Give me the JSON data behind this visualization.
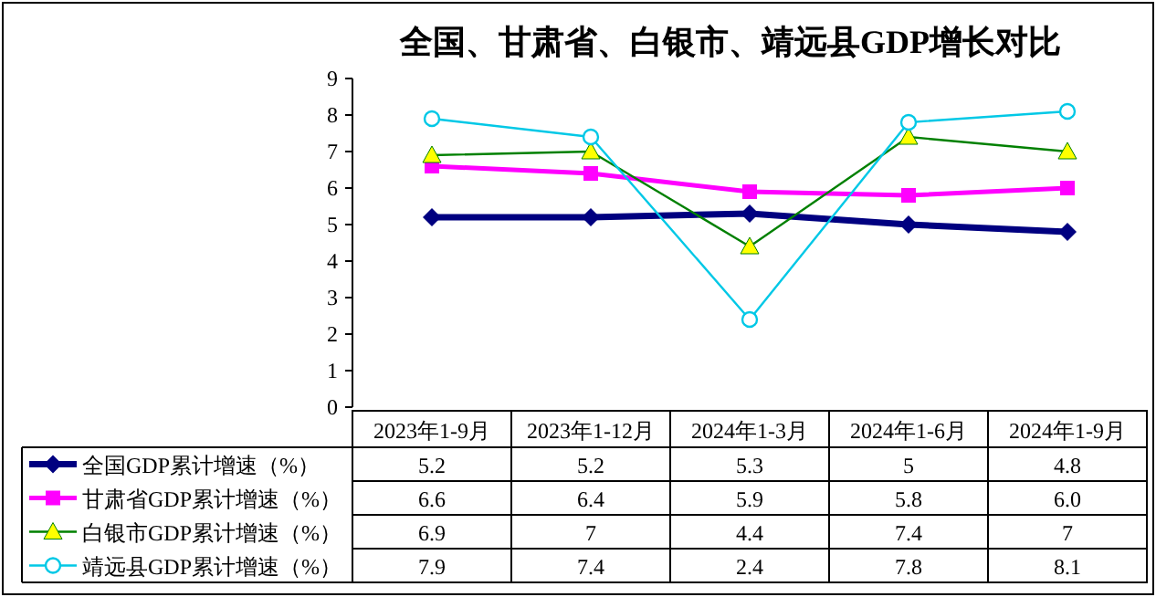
{
  "chart_data": {
    "type": "line",
    "title": "全国、甘肃省、白银市、靖远县GDP增长对比",
    "categories": [
      "2023年1-9月",
      "2023年1-12月",
      "2024年1-3月",
      "2024年1-6月",
      "2024年1-9月"
    ],
    "ylim": [
      0,
      9
    ],
    "yticks": [
      0,
      1,
      2,
      3,
      4,
      5,
      6,
      7,
      8,
      9
    ],
    "grid": false,
    "legend": "bottom",
    "line_style": "solid",
    "series": [
      {
        "name": "全国GDP累计增速（%）",
        "color": "#000080",
        "marker": "diamond",
        "values": [
          5.2,
          5.2,
          5.3,
          5,
          4.8
        ],
        "value_labels": [
          "5.2",
          "5.2",
          "5.3",
          "5",
          "4.8"
        ]
      },
      {
        "name": "甘肃省GDP累计增速（%）",
        "color": "#ff00ff",
        "marker": "square",
        "values": [
          6.6,
          6.4,
          5.9,
          5.8,
          6.0
        ],
        "value_labels": [
          "6.6",
          "6.4",
          "5.9",
          "5.8",
          "6.0"
        ]
      },
      {
        "name": "白银市GDP累计增速（%）",
        "color": "#008000",
        "marker": "triangle",
        "values": [
          6.9,
          7,
          4.4,
          7.4,
          7
        ],
        "value_labels": [
          "6.9",
          "7",
          "4.4",
          "7.4",
          "7"
        ]
      },
      {
        "name": "靖远县GDP累计增速（%）",
        "color": "#00c8e6",
        "marker": "circle",
        "values": [
          7.9,
          7.4,
          2.4,
          7.8,
          8.1
        ],
        "value_labels": [
          "7.9",
          "7.4",
          "2.4",
          "7.8",
          "8.1"
        ]
      }
    ]
  }
}
